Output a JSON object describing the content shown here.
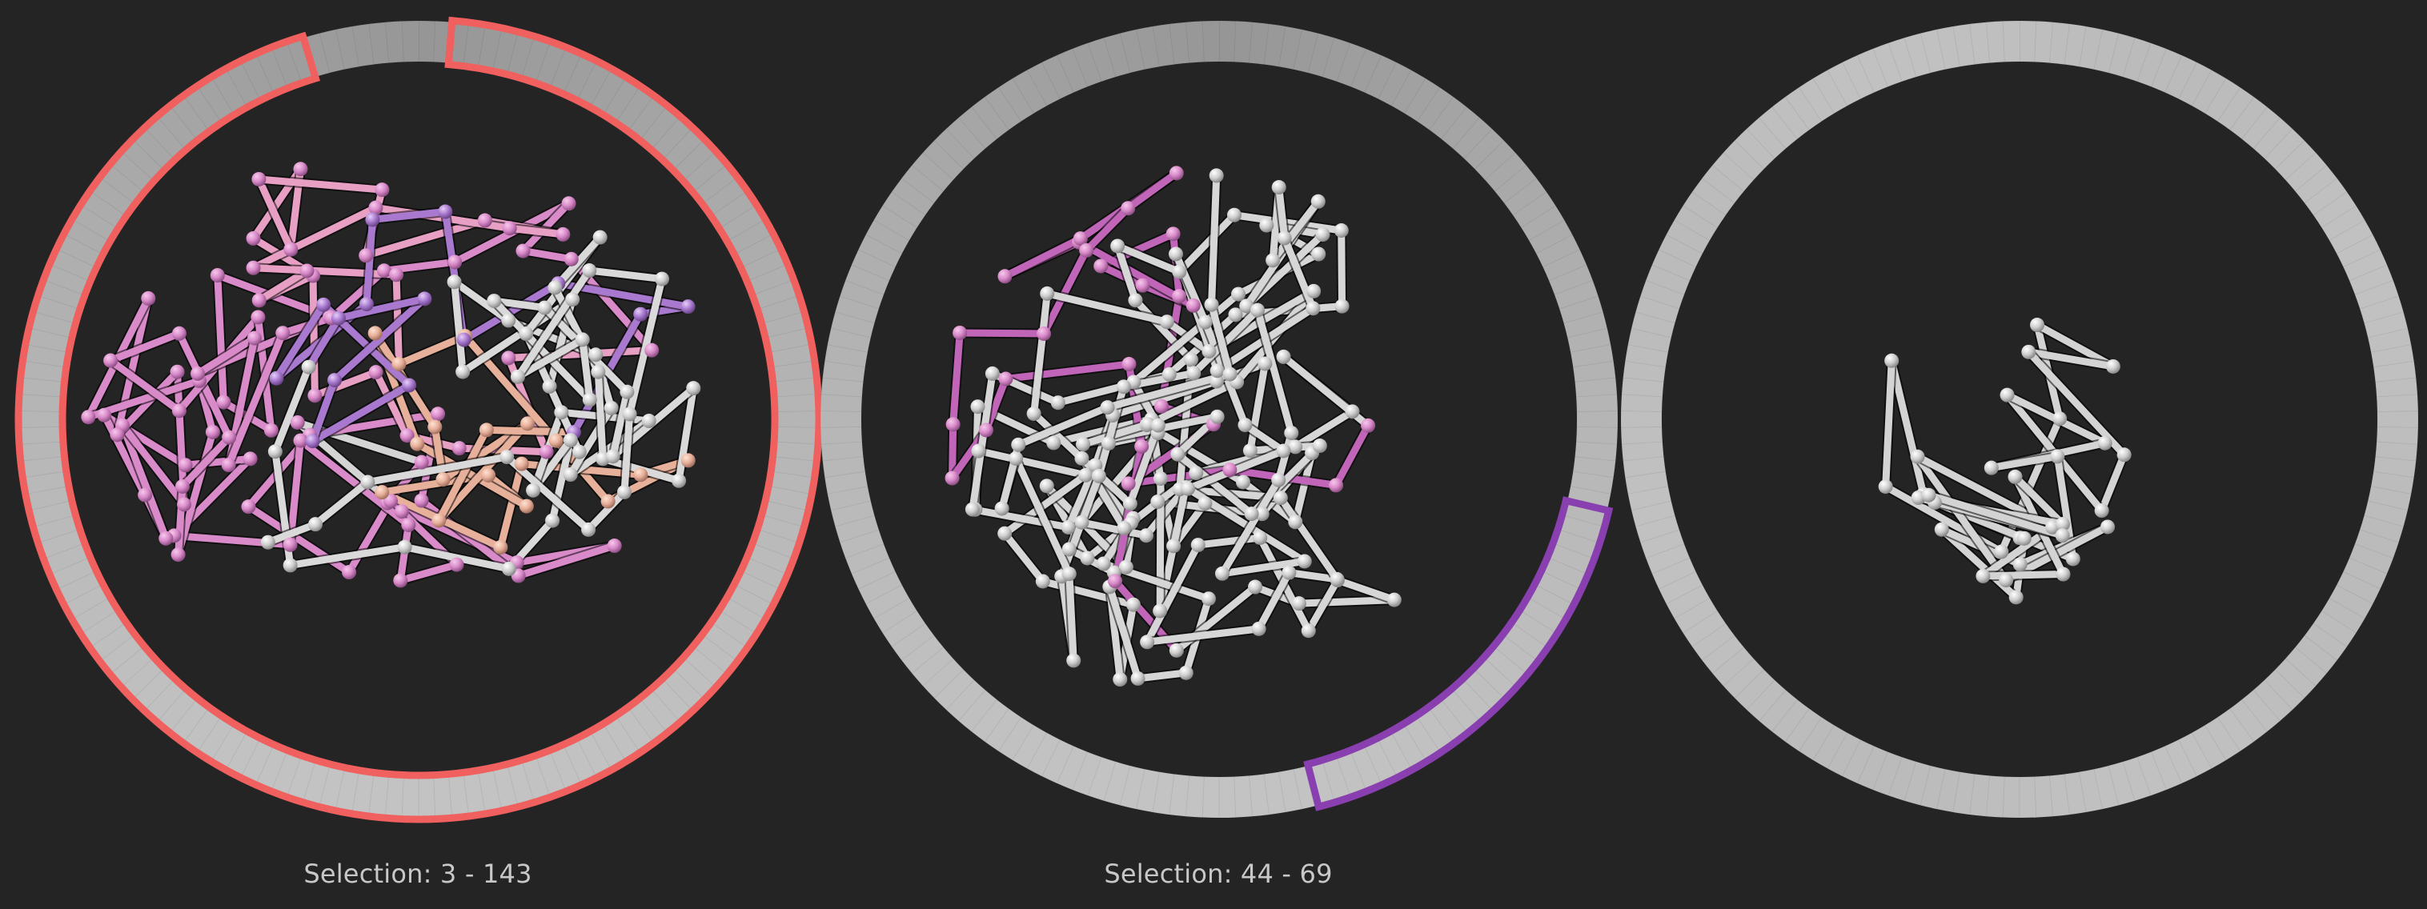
{
  "colors": {
    "background": "#242424",
    "ring": "#b9b9b9",
    "ring_dark": "#9e9e9e",
    "unselected_structure": "#d4d4d4",
    "pink": "#d98ac9",
    "magenta": "#c065b8",
    "violet": "#a879cf",
    "peach": "#e7b09a",
    "light_pink": "#e7a0c4",
    "selection_red": "#f0605f",
    "selection_purple": "#8a3fb0"
  },
  "views": [
    {
      "selection_caption": "Selection: 3 - 143",
      "selection_range": [
        3,
        143
      ],
      "selection_color": "#f0605f"
    },
    {
      "selection_caption": "Selection: 44 - 69",
      "selection_range": [
        44,
        69
      ],
      "selection_color": "#8a3fb0"
    },
    {
      "selection_caption": "",
      "selection_range": null,
      "selection_color": null
    }
  ]
}
